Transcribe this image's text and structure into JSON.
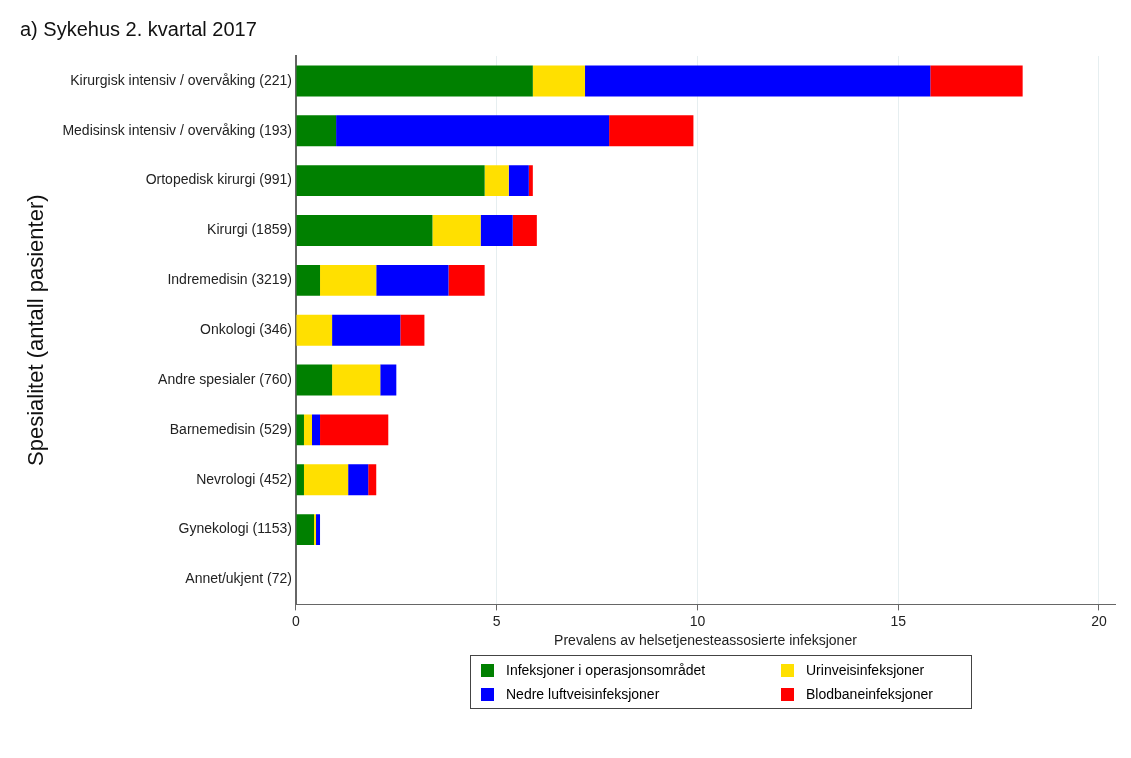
{
  "chart_data": {
    "type": "bar",
    "orientation": "horizontal",
    "stacked": true,
    "title": "a) Sykehus 2. kvartal 2017",
    "xlabel": "Prevalens av helsetjenesteassosierte infeksjoner",
    "ylabel": "Spesialitet (antall pasienter)",
    "categories": [
      "Kirurgisk intensiv / overvåking (221)",
      "Medisinsk intensiv / overvåking (193)",
      "Ortopedisk kirurgi (991)",
      "Kirurgi (1859)",
      "Indremedisin (3219)",
      "Onkologi (346)",
      "Andre spesialer (760)",
      "Barnemedisin (529)",
      "Nevrologi (452)",
      "Gynekologi (1153)",
      "Annet/ukjent (72)"
    ],
    "series": [
      {
        "name": "Infeksjoner i operasjonsområdet",
        "color": "#008000",
        "values": [
          5.9,
          1.0,
          4.7,
          3.4,
          0.6,
          0,
          0.9,
          0.2,
          0.2,
          0.45,
          0
        ]
      },
      {
        "name": "Urinveisinfeksjoner",
        "color": "#ffe000",
        "values": [
          1.3,
          0,
          0.6,
          1.2,
          1.4,
          0.9,
          1.2,
          0.2,
          1.1,
          0.05,
          0
        ]
      },
      {
        "name": "Nedre luftveisinfeksjoner",
        "color": "#0000ff",
        "values": [
          8.6,
          6.8,
          0.5,
          0.8,
          1.8,
          1.7,
          0.4,
          0.2,
          0.5,
          0.1,
          0
        ]
      },
      {
        "name": "Blodbaneinfeksjoner",
        "color": "#ff0000",
        "values": [
          2.3,
          2.1,
          0.1,
          0.6,
          0.9,
          0.6,
          0,
          1.7,
          0.2,
          0,
          0
        ]
      }
    ],
    "xlim": [
      0,
      20.4
    ],
    "xticks": [
      0,
      5,
      10,
      15,
      20
    ],
    "grid": "x",
    "legend": "bottom"
  }
}
